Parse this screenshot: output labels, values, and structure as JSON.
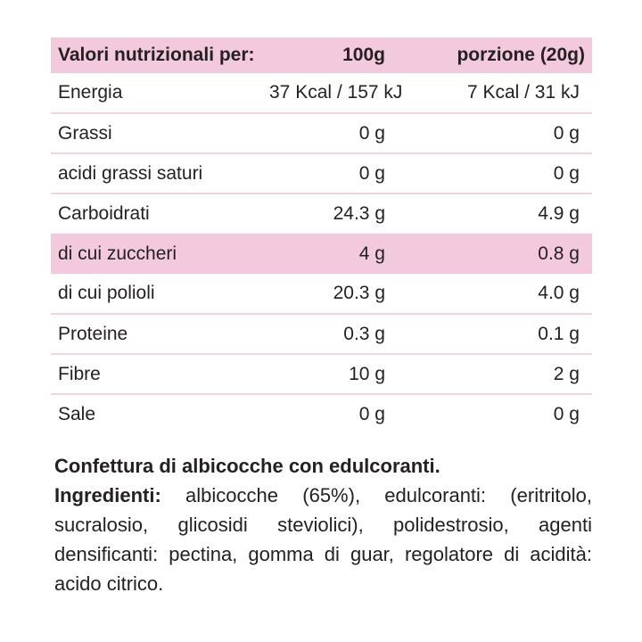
{
  "colors": {
    "highlight_pink": "#F3C9DD",
    "divider_pink": "#F0D5E1",
    "text": "#252122",
    "background": "#FFFFFF"
  },
  "table": {
    "header": {
      "col1": "Valori nutrizionali per:",
      "col2": "100g",
      "col3": "porzione (20g)"
    },
    "rows": [
      {
        "label": "Energia",
        "per100": "37 Kcal / 157 kJ",
        "portion": "7 Kcal / 31 kJ",
        "highlight": false
      },
      {
        "label": "Grassi",
        "per100": "0 g",
        "portion": "0 g",
        "highlight": false
      },
      {
        "label": "acidi grassi saturi",
        "per100": "0 g",
        "portion": "0 g",
        "highlight": false
      },
      {
        "label": "Carboidrati",
        "per100": "24.3 g",
        "portion": "4.9 g",
        "highlight": false
      },
      {
        "label": "di cui zuccheri",
        "per100": "4 g",
        "portion": "0.8 g",
        "highlight": true
      },
      {
        "label": "di cui polioli",
        "per100": "20.3 g",
        "portion": "4.0 g",
        "highlight": false
      },
      {
        "label": "Proteine",
        "per100": "0.3 g",
        "portion": "0.1 g",
        "highlight": false
      },
      {
        "label": "Fibre",
        "per100": "10 g",
        "portion": "2 g",
        "highlight": false
      },
      {
        "label": "Sale",
        "per100": "0 g",
        "portion": "0 g",
        "highlight": false
      }
    ]
  },
  "footer": {
    "product_name": "Confettura di albicocche con edulcoranti.",
    "ingredients_label": "Ingredienti:",
    "ingredients_text": "albicocche (65%), edulcoranti: (eritritolo, sucralosio, glicosidi steviolici), polidestrosio, agenti densificanti: pectina, gomma di guar, regolatore di acidità: acido citrico."
  }
}
